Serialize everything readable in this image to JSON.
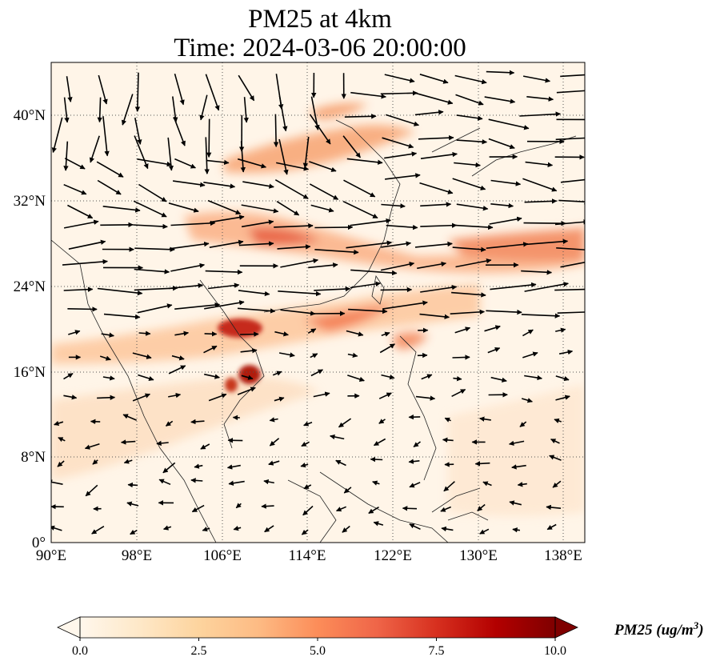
{
  "title": {
    "line1": "PM25 at 4km",
    "line2": "Time: 2024-03-06 20:00:00"
  },
  "map": {
    "lon_range": [
      90,
      140
    ],
    "lat_range": [
      0,
      45
    ],
    "lon_ticks": [
      "90°E",
      "98°E",
      "106°E",
      "114°E",
      "122°E",
      "130°E",
      "138°E"
    ],
    "lat_ticks": [
      "0°",
      "8°N",
      "16°N",
      "24°N",
      "32°N",
      "40°N"
    ],
    "field_colormap": "OrRd",
    "gridlines": "dotted",
    "wind_vectors": "shown"
  },
  "colorbar": {
    "label": "PM25 (ug/m",
    "label_sup": "3",
    "label_close": ")",
    "ticks": [
      "0.0",
      "2.5",
      "5.0",
      "7.5",
      "10.0"
    ],
    "min": 0,
    "max": 10,
    "extend": "both",
    "colors": [
      "#fff7ec",
      "#fee8c8",
      "#fdd49e",
      "#fdbb84",
      "#fc8d59",
      "#ef6548",
      "#d7301f",
      "#b30000",
      "#7f0000"
    ]
  }
}
